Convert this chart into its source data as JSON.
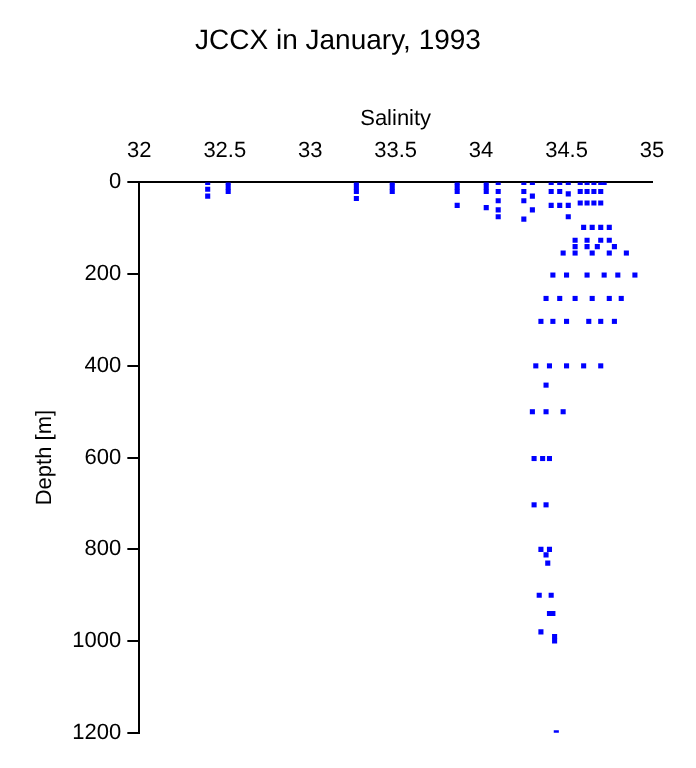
{
  "chart_data": {
    "type": "scatter",
    "title": "JCCX in January, 1993",
    "xlabel": "Salinity",
    "ylabel": "Depth [m]",
    "xlim": [
      32,
      35
    ],
    "xticks": [
      32,
      32.5,
      33,
      33.5,
      34,
      34.5,
      35
    ],
    "ylim": [
      1200,
      0
    ],
    "yticks": [
      0,
      200,
      400,
      600,
      800,
      1000,
      1200
    ],
    "grid": false,
    "legend": false,
    "marker": "square",
    "series": [
      {
        "color": "#0000ff",
        "x": [
          32.4,
          32.4,
          32.4,
          32.52,
          32.52,
          32.52,
          33.27,
          33.27,
          33.27,
          33.27,
          33.48,
          33.48,
          33.48,
          33.86,
          33.86,
          33.86,
          33.86,
          34.03,
          34.03,
          34.03,
          34.03,
          34.1,
          34.1,
          34.1,
          34.1,
          34.1,
          34.25,
          34.25,
          34.25,
          34.25,
          34.3,
          34.3,
          34.3,
          34.41,
          34.41,
          34.41,
          34.46,
          34.46,
          34.46,
          34.51,
          34.51,
          34.51,
          34.51,
          34.58,
          34.62,
          34.66,
          34.7,
          34.72,
          34.58,
          34.62,
          34.66,
          34.7,
          34.58,
          34.62,
          34.66,
          34.7,
          34.6,
          34.65,
          34.7,
          34.75,
          34.55,
          34.62,
          34.7,
          34.75,
          34.55,
          34.62,
          34.68,
          34.78,
          34.48,
          34.55,
          34.65,
          34.75,
          34.85,
          34.42,
          34.5,
          34.62,
          34.72,
          34.8,
          34.9,
          34.38,
          34.46,
          34.55,
          34.65,
          34.75,
          34.82,
          34.35,
          34.42,
          34.5,
          34.63,
          34.7,
          34.78,
          34.32,
          34.4,
          34.5,
          34.6,
          34.7,
          34.38,
          34.3,
          34.38,
          34.48,
          34.31,
          34.36,
          34.4,
          34.31,
          34.38,
          34.35,
          34.4,
          34.38,
          34.39,
          34.34,
          34.41,
          34.4,
          34.42,
          34.35,
          34.43,
          34.43,
          34.44
        ],
        "values": [
          0,
          15,
          30,
          0,
          10,
          20,
          0,
          10,
          20,
          35,
          0,
          10,
          20,
          0,
          10,
          20,
          50,
          0,
          10,
          20,
          55,
          0,
          20,
          40,
          60,
          75,
          0,
          20,
          40,
          80,
          0,
          30,
          60,
          0,
          20,
          50,
          0,
          20,
          50,
          0,
          25,
          50,
          75,
          0,
          0,
          0,
          0,
          0,
          20,
          20,
          20,
          20,
          45,
          45,
          45,
          45,
          98,
          98,
          98,
          98,
          126,
          126,
          126,
          126,
          140,
          140,
          140,
          140,
          154,
          154,
          154,
          154,
          154,
          202,
          202,
          202,
          202,
          202,
          202,
          253,
          253,
          253,
          253,
          253,
          253,
          303,
          303,
          303,
          303,
          303,
          303,
          400,
          400,
          400,
          400,
          400,
          442,
          500,
          500,
          500,
          602,
          602,
          602,
          703,
          703,
          800,
          800,
          812,
          830,
          900,
          900,
          940,
          940,
          980,
          990,
          1000,
          1200
        ]
      }
    ]
  }
}
